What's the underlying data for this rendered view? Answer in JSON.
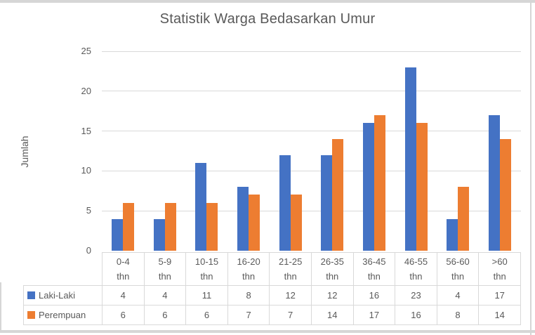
{
  "chart_data": {
    "type": "bar",
    "title": "Statistik Warga Bedasarkan Umur",
    "ylabel": "Jumlah",
    "xlabel": "",
    "categories": [
      "0-4 thn",
      "5-9 thn",
      "10-15 thn",
      "16-20 thn",
      "21-25 thn",
      "26-35 thn",
      "36-45 thn",
      "46-55 thn",
      "56-60 thn",
      ">60 thn"
    ],
    "series": [
      {
        "name": "Laki-Laki",
        "color": "#4472c4",
        "values": [
          4,
          4,
          11,
          8,
          12,
          12,
          16,
          23,
          4,
          17
        ]
      },
      {
        "name": "Perempuan",
        "color": "#ed7d31",
        "values": [
          6,
          6,
          6,
          7,
          7,
          14,
          17,
          16,
          8,
          14
        ]
      }
    ],
    "ylim": [
      0,
      25
    ],
    "yticks": [
      0,
      5,
      10,
      15,
      20,
      25
    ],
    "grid": true,
    "legend_position": "data-table-left",
    "colors": {
      "text": "#595959",
      "gridline": "#d9d9d9",
      "table_border": "#d9d9d9",
      "frame_border": "#d6d6d6",
      "background": "#ffffff"
    }
  }
}
